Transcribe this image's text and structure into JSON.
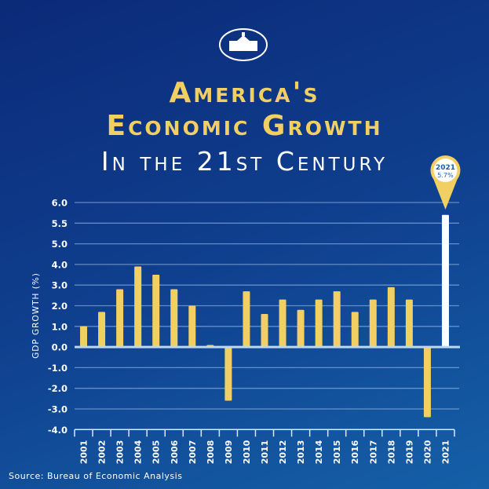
{
  "header": {
    "title_line1": "America's",
    "title_line2": "Economic Growth",
    "title_line3": "In the 21st Century",
    "logo": "white-house-logo"
  },
  "source": "Source: Bureau of Economic Analysis",
  "colors": {
    "bar": "#f2cf62",
    "highlight_bar": "#ffffff",
    "background": "#0f3f8e",
    "label_blue": "#1a5fb0"
  },
  "chart_data": {
    "type": "bar",
    "title": "America's Economic Growth In the 21st Century",
    "xlabel": "",
    "ylabel": "GDP GROWTH (%)",
    "yticks": [
      "6.0",
      "5.5",
      "5.0",
      "4.0",
      "3.0",
      "2.0",
      "1.0",
      "0.0",
      "-1.0",
      "-2.0",
      "-3.0",
      "-4.0"
    ],
    "ytick_values": [
      6,
      5.5,
      5,
      4,
      3,
      2,
      1,
      0,
      -1,
      -2,
      -3,
      -4
    ],
    "ylim": [
      -4,
      6
    ],
    "grid": true,
    "categories": [
      "2001",
      "2002",
      "2003",
      "2004",
      "2005",
      "2006",
      "2007",
      "2008",
      "2009",
      "2010",
      "2011",
      "2012",
      "2013",
      "2014",
      "2015",
      "2016",
      "2017",
      "2018",
      "2019",
      "2020",
      "2021"
    ],
    "values": [
      1.0,
      1.7,
      2.8,
      3.9,
      3.5,
      2.8,
      2.0,
      0.1,
      -2.6,
      2.7,
      1.6,
      2.3,
      1.8,
      2.3,
      2.7,
      1.7,
      2.3,
      2.9,
      2.3,
      -3.4,
      5.7
    ],
    "highlight": {
      "category": "2021",
      "label_year": "2021",
      "label_value": "5.7%"
    }
  }
}
